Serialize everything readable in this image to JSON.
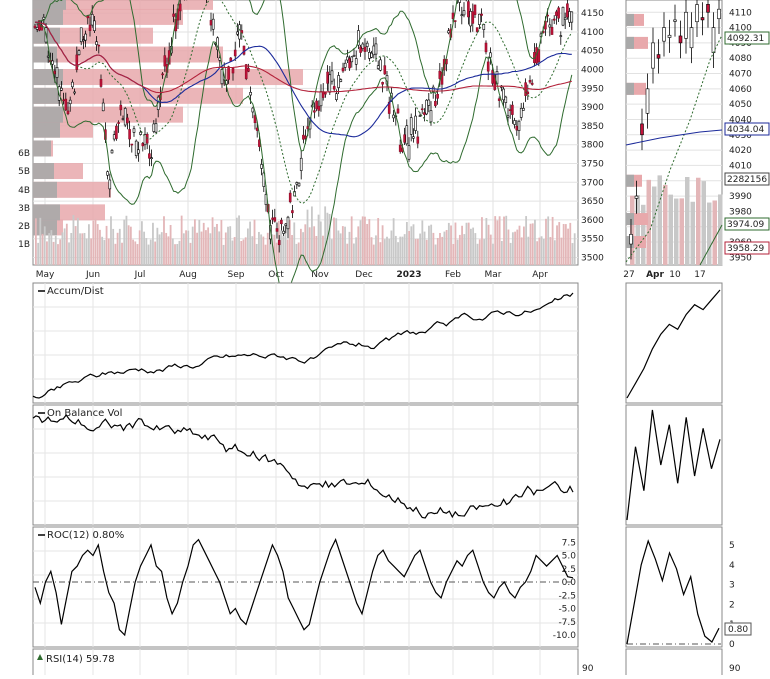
{
  "chart_data": [
    {
      "type": "candlestick",
      "panel": "main",
      "x_labels": [
        "May",
        "Jun",
        "Jul",
        "Aug",
        "Sep",
        "Oct",
        "Nov",
        "Dec",
        "2023",
        "Feb",
        "Mar",
        "Apr"
      ],
      "y_ticks": [
        3500,
        3550,
        3600,
        3650,
        3700,
        3750,
        3800,
        3850,
        3900,
        3950,
        4000,
        4050,
        4100,
        4150
      ],
      "volume_ticks": [
        "1B",
        "2B",
        "3B",
        "4B",
        "5B",
        "6B"
      ],
      "ylim": [
        3480,
        4185
      ],
      "ma_last": "4034.04",
      "series_approx": [
        [
          "2022-05-02",
          4150
        ],
        [
          "2022-05-10",
          4000
        ],
        [
          "2022-05-20",
          3900
        ],
        [
          "2022-05-31",
          4120
        ],
        [
          "2022-06-08",
          4110
        ],
        [
          "2022-06-16",
          3680
        ],
        [
          "2022-06-24",
          3900
        ],
        [
          "2022-07-01",
          3820
        ],
        [
          "2022-07-14",
          3790
        ],
        [
          "2022-07-29",
          4120
        ],
        [
          "2022-08-16",
          4300
        ],
        [
          "2022-08-31",
          3960
        ],
        [
          "2022-09-12",
          4110
        ],
        [
          "2022-09-30",
          3590
        ],
        [
          "2022-10-12",
          3580
        ],
        [
          "2022-10-28",
          3900
        ],
        [
          "2022-11-10",
          3950
        ],
        [
          "2022-11-30",
          4080
        ],
        [
          "2022-12-13",
          4020
        ],
        [
          "2022-12-28",
          3790
        ],
        [
          "2023-01-18",
          3920
        ],
        [
          "2023-02-02",
          4180
        ],
        [
          "2023-02-15",
          4140
        ],
        [
          "2023-03-01",
          3950
        ],
        [
          "2023-03-13",
          3850
        ],
        [
          "2023-03-31",
          4110
        ],
        [
          "2023-04-18",
          4150
        ]
      ]
    },
    {
      "type": "candlestick",
      "panel": "zoom",
      "x_labels": [
        "27",
        "Apr",
        "10",
        "17"
      ],
      "y_ticks": [
        3950,
        3960,
        3970,
        3980,
        3990,
        4000,
        4010,
        4020,
        4030,
        4040,
        4050,
        4060,
        4070,
        4080,
        4090,
        4100,
        4110
      ],
      "price_tags": [
        "4092.31",
        "4034.04",
        "2282156",
        "3974.09",
        "3958.29"
      ]
    },
    {
      "type": "line",
      "name": "Accum/Dist"
    },
    {
      "type": "line",
      "name": "On Balance Vol"
    },
    {
      "type": "line",
      "name": "ROC(12) 0.80%",
      "last_value": "0.80",
      "y_ticks_main": [
        "7.5",
        "5.0",
        "2.5",
        "0.0",
        "-2.5",
        "-5.0",
        "-7.5",
        "-10.0"
      ],
      "y_ticks_zoom": [
        "5",
        "4",
        "3",
        "2",
        "1",
        "0"
      ],
      "values_approx": [
        -1,
        -4,
        0,
        2,
        -2,
        -8,
        -3,
        2,
        3,
        5,
        6,
        5,
        7,
        2,
        -2,
        -4,
        -9,
        -10,
        -5,
        0,
        3,
        5,
        7,
        3,
        2,
        -3,
        -6,
        -4,
        0,
        3,
        7,
        8,
        6,
        4,
        2,
        0,
        -3,
        -6,
        -5,
        -7,
        -8,
        -5,
        -2,
        1,
        4,
        7,
        5,
        2,
        -3,
        -5,
        -7,
        -9,
        -8,
        -4,
        0,
        3,
        6,
        8,
        5,
        2,
        -1,
        -4,
        -6,
        -2,
        2,
        5,
        6,
        4,
        3,
        2,
        1,
        3,
        5,
        6,
        3,
        0,
        -2,
        -3,
        0,
        2,
        4,
        3,
        5,
        6,
        3,
        0,
        -2,
        -3,
        -1,
        0,
        -2,
        -3,
        -1,
        0,
        2,
        5,
        4,
        3,
        4,
        5,
        3,
        1,
        0.8
      ]
    },
    {
      "type": "line",
      "name": "RSI(14) 59.78",
      "y_tick_main": "90",
      "y_tick_zoom": "90"
    }
  ]
}
